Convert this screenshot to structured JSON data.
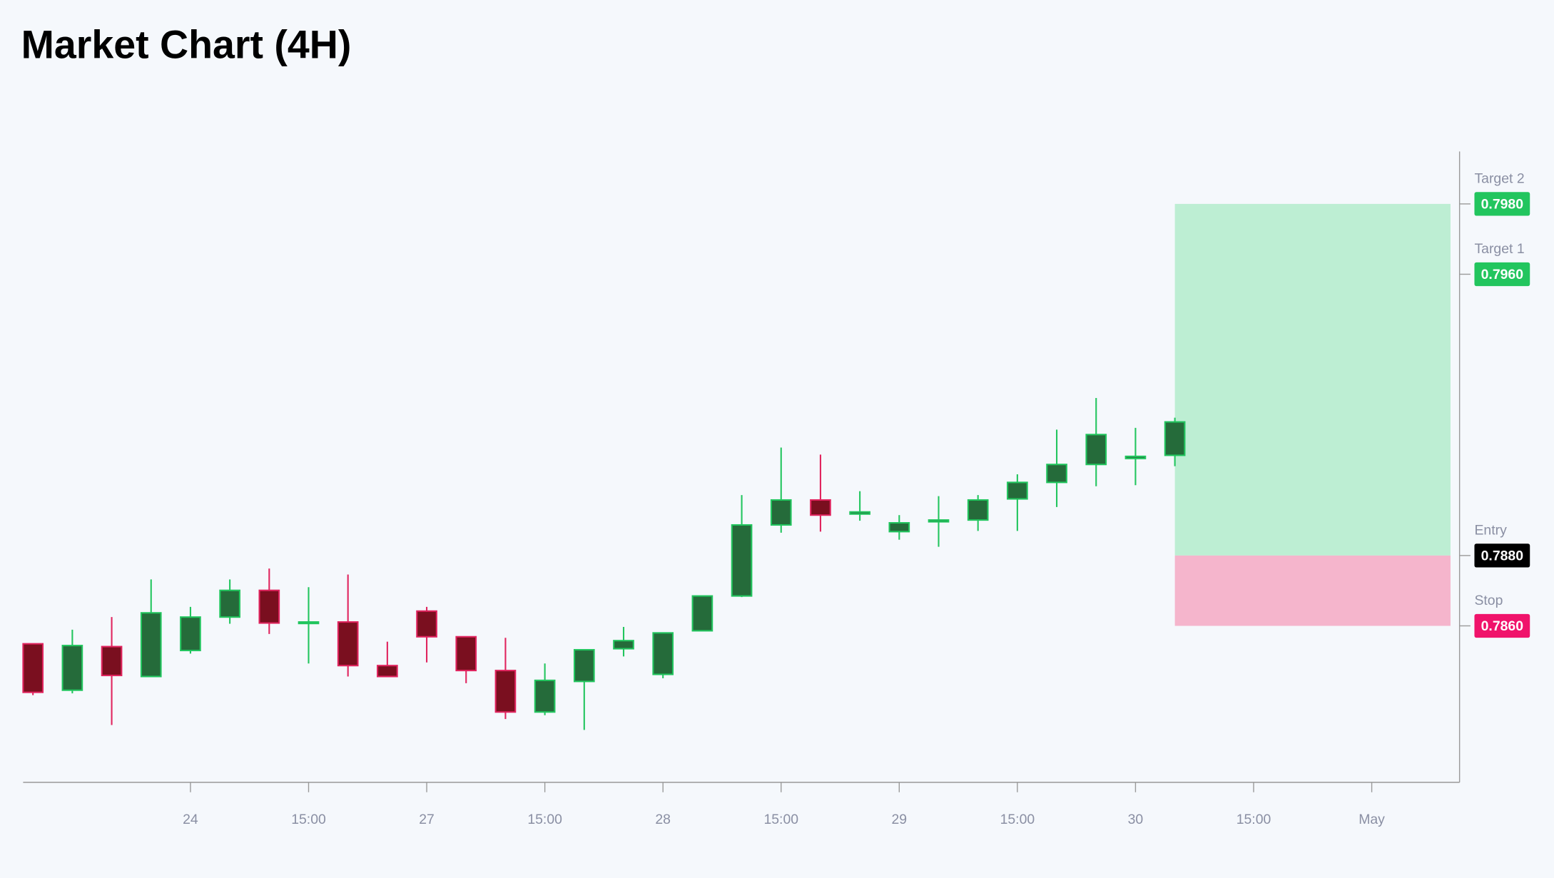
{
  "chart_data": {
    "type": "candlestick",
    "title": "Market Chart (4H)",
    "open": [
      0.78549,
      0.78417,
      0.78541,
      0.78456,
      0.7853,
      0.78625,
      0.78701,
      0.78608,
      0.78611,
      0.78487,
      0.78642,
      0.78569,
      0.78473,
      0.78355,
      0.78442,
      0.78535,
      0.78462,
      0.78586,
      0.78685,
      0.78887,
      0.78958,
      0.78918,
      0.78868,
      0.78896,
      0.78901,
      0.78961,
      0.79008,
      0.79059,
      0.79076,
      0.79085
    ],
    "high": [
      0.78549,
      0.78589,
      0.78625,
      0.78732,
      0.78654,
      0.78732,
      0.78763,
      0.7871,
      0.78746,
      0.78555,
      0.78654,
      0.78569,
      0.78566,
      0.78493,
      0.78532,
      0.78597,
      0.7858,
      0.78685,
      0.78972,
      0.79107,
      0.79087,
      0.78983,
      0.78915,
      0.78969,
      0.78972,
      0.79031,
      0.79158,
      0.79248,
      0.79163,
      0.79192
    ],
    "low": [
      0.78403,
      0.78408,
      0.78318,
      0.78456,
      0.78521,
      0.78606,
      0.78577,
      0.78493,
      0.78456,
      0.78456,
      0.78496,
      0.78437,
      0.78335,
      0.78346,
      0.78304,
      0.78513,
      0.78451,
      0.78586,
      0.78682,
      0.78865,
      0.78868,
      0.78899,
      0.78845,
      0.78825,
      0.7887,
      0.7887,
      0.78938,
      0.78997,
      0.79,
      0.79054
    ],
    "close": [
      0.78411,
      0.78544,
      0.78459,
      0.78637,
      0.78625,
      0.78701,
      0.78608,
      0.78611,
      0.78487,
      0.78456,
      0.78569,
      0.78473,
      0.78355,
      0.78445,
      0.78532,
      0.78558,
      0.7858,
      0.78685,
      0.78887,
      0.78958,
      0.78915,
      0.78924,
      0.78893,
      0.78901,
      0.78958,
      0.79008,
      0.79059,
      0.79144,
      0.79082,
      0.7918
    ],
    "up_color": "#22c55e",
    "up_fill": "#256b3a",
    "down_color": "#e0245e",
    "down_fill": "#7a0f1f",
    "xlim": [
      -0.25,
      36.23
    ],
    "ylim": [
      0.78155,
      0.79949
    ],
    "xticks": [
      {
        "value": 4,
        "label": "24"
      },
      {
        "value": 7,
        "label": "15:00"
      },
      {
        "value": 10,
        "label": "27"
      },
      {
        "value": 13,
        "label": "15:00"
      },
      {
        "value": 16,
        "label": "28"
      },
      {
        "value": 19,
        "label": "15:00"
      },
      {
        "value": 22,
        "label": "29"
      },
      {
        "value": 25,
        "label": "15:00"
      },
      {
        "value": 28,
        "label": "30"
      },
      {
        "value": 31,
        "label": "15:00"
      },
      {
        "value": 34,
        "label": "May"
      }
    ],
    "levels": [
      {
        "name": "Target 2",
        "value": 0.798,
        "label": "0.7980",
        "color": "#22c55e"
      },
      {
        "name": "Target 1",
        "value": 0.796,
        "label": "0.7960",
        "color": "#22c55e"
      },
      {
        "name": "Entry",
        "value": 0.788,
        "label": "0.7880",
        "color": "#000000"
      },
      {
        "name": "Stop",
        "value": 0.786,
        "label": "0.7860",
        "color": "#f0136b"
      }
    ],
    "position": {
      "start": 29,
      "end": 36,
      "profit_color": "#bdeed3",
      "loss_color": "#f5b5cc"
    }
  }
}
